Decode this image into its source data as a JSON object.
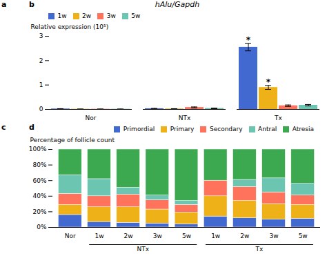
{
  "chart_data": [
    {
      "type": "bar",
      "title": "hAlu/Gapdh",
      "ylabel": "Relative expression (10⁵)",
      "categories": [
        "Nor",
        "NTx",
        "Tx"
      ],
      "series": [
        {
          "name": "1w",
          "values": [
            0.02,
            0.03,
            2.55
          ],
          "errors": [
            0.01,
            0.01,
            0.15
          ]
        },
        {
          "name": "2w",
          "values": [
            0.01,
            0.02,
            0.9
          ],
          "errors": [
            0.005,
            0.01,
            0.08
          ]
        },
        {
          "name": "3w",
          "values": [
            0.01,
            0.08,
            0.15
          ],
          "errors": [
            0.005,
            0.02,
            0.03
          ]
        },
        {
          "name": "5w",
          "values": [
            0.01,
            0.04,
            0.17
          ],
          "errors": [
            0.005,
            0.01,
            0.03
          ]
        }
      ],
      "ylim": [
        0,
        3.0
      ],
      "yticks": [
        0,
        1,
        2,
        3
      ],
      "legend": "upper left",
      "grid": false,
      "annotations": [
        {
          "text": "a"
        },
        {
          "text": "b"
        },
        {
          "text": "*",
          "category": "Tx",
          "series": "1w"
        },
        {
          "text": "*",
          "category": "Tx",
          "series": "2w"
        }
      ]
    },
    {
      "type": "bar",
      "stacked": true,
      "ylabel": "Percentage of follicle count",
      "categories": [
        "Nor",
        "1w",
        "2w",
        "3w",
        "5w",
        "1w",
        "2w",
        "3w",
        "5w"
      ],
      "series": [
        {
          "name": "Primordial",
          "values": [
            16,
            7,
            6,
            5,
            4,
            14,
            12,
            10,
            11
          ]
        },
        {
          "name": "Primary",
          "values": [
            13,
            19,
            20,
            18,
            15,
            26,
            22,
            20,
            18
          ]
        },
        {
          "name": "Secondary",
          "values": [
            14,
            14,
            16,
            12,
            10,
            20,
            18,
            15,
            12
          ]
        },
        {
          "name": "Antral",
          "values": [
            24,
            22,
            9,
            6,
            5,
            0,
            9,
            18,
            15
          ]
        },
        {
          "name": "Atresia",
          "values": [
            33,
            38,
            49,
            59,
            66,
            40,
            39,
            37,
            44
          ]
        }
      ],
      "ylim": [
        0,
        100
      ],
      "yticks": [
        {
          "value": 0,
          "label": "0%"
        },
        {
          "value": 20,
          "label": "20%"
        },
        {
          "value": 40,
          "label": "40%"
        },
        {
          "value": 60,
          "label": "60%"
        },
        {
          "value": 80,
          "label": "80%"
        },
        {
          "value": 100,
          "label": "100%"
        }
      ],
      "legend": "upper right",
      "grid": false,
      "annotations": [
        {
          "text": "c"
        },
        {
          "text": "d"
        },
        {
          "text": "NTx",
          "span": [
            1,
            4
          ]
        },
        {
          "text": "Tx",
          "span": [
            5,
            8
          ]
        }
      ]
    }
  ]
}
